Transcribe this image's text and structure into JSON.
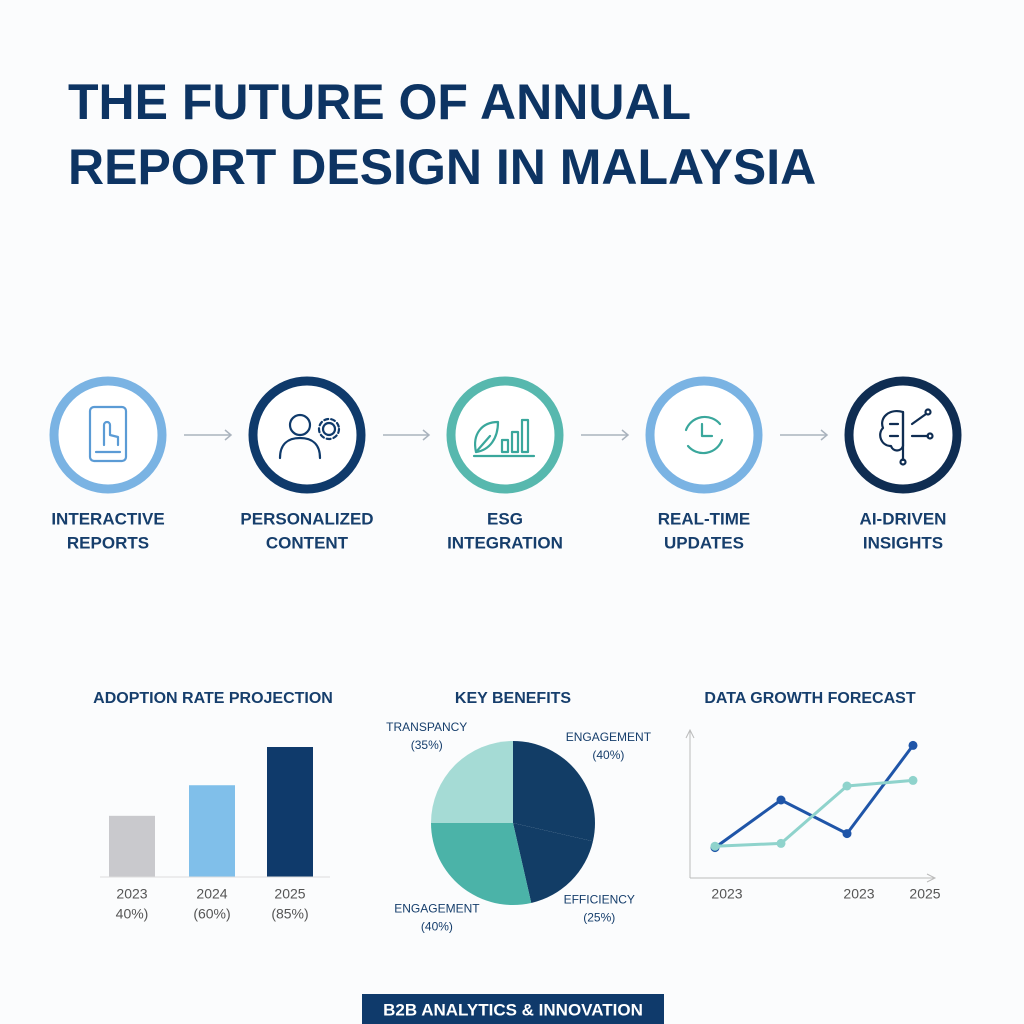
{
  "header": {
    "title_lines": [
      "THE FUTURE OF ANNUAL",
      "REPORT DESIGN IN MALAYSIA"
    ]
  },
  "steps": [
    {
      "label_lines": [
        "INTERACTIVE",
        "REPORTS"
      ],
      "color": "#7ab3e3"
    },
    {
      "label_lines": [
        "PERSONALIZED",
        "CONTENT"
      ],
      "color": "#0f3a6b"
    },
    {
      "label_lines": [
        "ESG",
        "INTEGRATION"
      ],
      "color": "#57b8ae"
    },
    {
      "label_lines": [
        "REAL-TIME",
        "UPDATES"
      ],
      "color": "#7ab3e3"
    },
    {
      "label_lines": [
        "AI-DRIVEN",
        "INSIGHTS"
      ],
      "color": "#0f2d52"
    }
  ],
  "chart_data": [
    {
      "type": "bar",
      "title": "ADOPTION RATE PROJECTION",
      "categories": [
        "2023",
        "2024",
        "2025"
      ],
      "values": [
        40,
        60,
        85
      ],
      "value_labels": [
        "40%)",
        "(60%)",
        "(85%)"
      ],
      "colors": [
        "#c9c9cd",
        "#80bfea",
        "#0f3a6b"
      ]
    },
    {
      "type": "pie",
      "title": "KEY BENEFITS",
      "categories": [
        "ENGAGEMENT",
        "EFFICIENCY",
        "ENGAGEMENT",
        "TRANSPANCY"
      ],
      "values": [
        40,
        25,
        40,
        35
      ],
      "value_labels": [
        "(40%)",
        "(25%)",
        "(40%)",
        "(35%)"
      ],
      "colors": [
        "#123d66",
        "#123d66",
        "#4bb3a8",
        "#a5dbd5"
      ]
    },
    {
      "type": "line",
      "title": "DATA GROWTH FORECAST",
      "categories": [
        "2023",
        null,
        "2023",
        "2025"
      ],
      "series": [
        {
          "color": "#1f55a8",
          "values": [
            16,
            50,
            26,
            89
          ]
        },
        {
          "color": "#8fd3cc",
          "values": [
            17,
            19,
            60,
            64
          ]
        }
      ]
    }
  ],
  "footer": "B2B ANALYTICS & INNOVATION"
}
